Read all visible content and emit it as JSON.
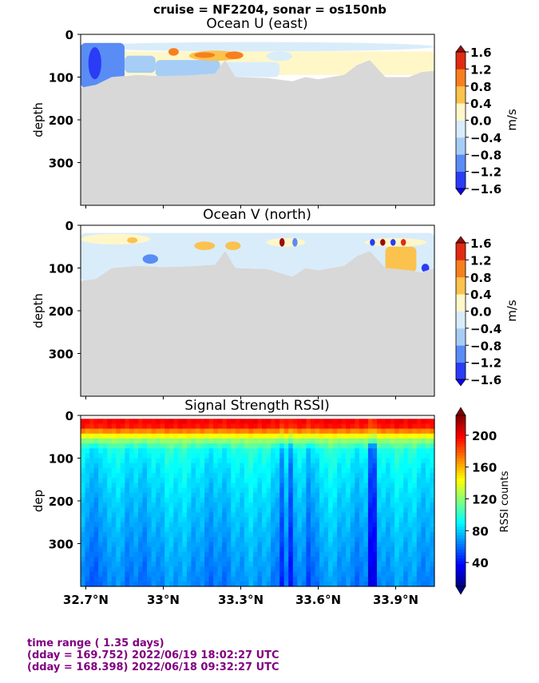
{
  "suptitle": "cruise = NF2204,  sonar = os150nb",
  "colors": {
    "land": "#d8d8d8",
    "footer": "#800080"
  },
  "footer": {
    "line1": "time range ( 1.35 days)",
    "line2": "(dday = 169.752) 2022/06/19 18:02:27 UTC",
    "line3": "(dday = 168.398) 2022/06/18 09:32:27 UTC"
  },
  "chart_data": [
    {
      "type": "heatmap",
      "title": "Ocean U (east)",
      "ylabel": "depth",
      "yticks": [
        "0",
        "100",
        "200",
        "300"
      ],
      "ylim": [
        400,
        0
      ],
      "xlim": [
        32.68,
        34.05
      ],
      "xticks": [
        32.7,
        33.0,
        33.3,
        33.6,
        33.9
      ],
      "colorbar": {
        "label": "m/s",
        "ticks": [
          "1.6",
          "1.2",
          "0.8",
          "0.4",
          "0.0",
          "−0.4",
          "−0.8",
          "−1.2",
          "−1.6"
        ]
      },
      "bottom_depth": [
        [
          32.68,
          125
        ],
        [
          32.74,
          118
        ],
        [
          32.8,
          100
        ],
        [
          32.9,
          95
        ],
        [
          33.0,
          98
        ],
        [
          33.1,
          96
        ],
        [
          33.2,
          92
        ],
        [
          33.24,
          60
        ],
        [
          33.28,
          100
        ],
        [
          33.4,
          102
        ],
        [
          33.5,
          110
        ],
        [
          33.55,
          100
        ],
        [
          33.6,
          105
        ],
        [
          33.7,
          95
        ],
        [
          33.75,
          72
        ],
        [
          33.8,
          60
        ],
        [
          33.86,
          100
        ],
        [
          33.95,
          100
        ],
        [
          34.0,
          88
        ],
        [
          34.05,
          85
        ]
      ],
      "features": [
        {
          "lat0": 32.68,
          "lat1": 34.05,
          "d0": 18,
          "d1": 40,
          "value": -0.4
        },
        {
          "lat0": 32.68,
          "lat1": 34.05,
          "d0": 40,
          "d1": 95,
          "value": 0.2
        },
        {
          "lat0": 32.68,
          "lat1": 32.85,
          "d0": 20,
          "d1": 125,
          "value": -1.0
        },
        {
          "lat0": 32.71,
          "lat1": 32.76,
          "d0": 30,
          "d1": 105,
          "value": -1.5
        },
        {
          "lat0": 32.85,
          "lat1": 32.97,
          "d0": 50,
          "d1": 90,
          "value": -0.8
        },
        {
          "lat0": 32.97,
          "lat1": 33.22,
          "d0": 60,
          "d1": 100,
          "value": -0.6
        },
        {
          "lat0": 33.22,
          "lat1": 33.45,
          "d0": 65,
          "d1": 100,
          "value": -0.4
        },
        {
          "lat0": 33.1,
          "lat1": 33.3,
          "d0": 38,
          "d1": 62,
          "value": 0.6
        },
        {
          "lat0": 33.12,
          "lat1": 33.2,
          "d0": 42,
          "d1": 55,
          "value": 1.0
        },
        {
          "lat0": 33.24,
          "lat1": 33.31,
          "d0": 40,
          "d1": 58,
          "value": 1.1
        },
        {
          "lat0": 33.02,
          "lat1": 33.06,
          "d0": 32,
          "d1": 50,
          "value": 0.9
        },
        {
          "lat0": 33.4,
          "lat1": 33.5,
          "d0": 40,
          "d1": 62,
          "value": -0.4
        },
        {
          "lat0": 33.8,
          "lat1": 34.0,
          "d0": 50,
          "d1": 95,
          "value": 0.3
        }
      ]
    },
    {
      "type": "heatmap",
      "title": "Ocean V (north)",
      "ylabel": "depth",
      "yticks": [
        "0",
        "100",
        "200",
        "300"
      ],
      "ylim": [
        400,
        0
      ],
      "xlim": [
        32.68,
        34.05
      ],
      "xticks": [
        32.7,
        33.0,
        33.3,
        33.6,
        33.9
      ],
      "colorbar": {
        "label": "m/s",
        "ticks": [
          "1.6",
          "1.2",
          "0.8",
          "0.4",
          "0.0",
          "−0.4",
          "−0.8",
          "−1.2",
          "−1.6"
        ]
      },
      "bottom_depth": [
        [
          32.68,
          130
        ],
        [
          32.74,
          125
        ],
        [
          32.8,
          100
        ],
        [
          32.9,
          95
        ],
        [
          33.0,
          98
        ],
        [
          33.1,
          96
        ],
        [
          33.2,
          92
        ],
        [
          33.24,
          60
        ],
        [
          33.28,
          100
        ],
        [
          33.4,
          102
        ],
        [
          33.5,
          120
        ],
        [
          33.55,
          100
        ],
        [
          33.6,
          105
        ],
        [
          33.7,
          95
        ],
        [
          33.75,
          72
        ],
        [
          33.8,
          60
        ],
        [
          33.86,
          100
        ],
        [
          33.95,
          105
        ],
        [
          34.0,
          110
        ],
        [
          34.05,
          100
        ]
      ],
      "features": [
        {
          "lat0": 32.68,
          "lat1": 34.05,
          "d0": 18,
          "d1": 130,
          "value": -0.3
        },
        {
          "lat0": 32.68,
          "lat1": 32.95,
          "d0": 20,
          "d1": 45,
          "value": 0.1
        },
        {
          "lat0": 32.86,
          "lat1": 32.9,
          "d0": 28,
          "d1": 42,
          "value": 0.7
        },
        {
          "lat0": 32.92,
          "lat1": 32.98,
          "d0": 68,
          "d1": 90,
          "value": -1.2
        },
        {
          "lat0": 33.12,
          "lat1": 33.2,
          "d0": 38,
          "d1": 58,
          "value": 0.7
        },
        {
          "lat0": 33.24,
          "lat1": 33.3,
          "d0": 38,
          "d1": 58,
          "value": 0.6
        },
        {
          "lat0": 33.4,
          "lat1": 33.55,
          "d0": 30,
          "d1": 50,
          "value": 0.2
        },
        {
          "lat0": 33.45,
          "lat1": 33.47,
          "d0": 30,
          "d1": 50,
          "value": 1.6
        },
        {
          "lat0": 33.5,
          "lat1": 33.52,
          "d0": 30,
          "d1": 50,
          "value": -1.2
        },
        {
          "lat0": 33.78,
          "lat1": 34.02,
          "d0": 30,
          "d1": 50,
          "value": 0.3
        },
        {
          "lat0": 33.8,
          "lat1": 33.82,
          "d0": 32,
          "d1": 48,
          "value": -1.6
        },
        {
          "lat0": 33.84,
          "lat1": 33.86,
          "d0": 32,
          "d1": 48,
          "value": 1.6
        },
        {
          "lat0": 33.88,
          "lat1": 33.9,
          "d0": 32,
          "d1": 48,
          "value": -1.4
        },
        {
          "lat0": 33.92,
          "lat1": 33.94,
          "d0": 32,
          "d1": 48,
          "value": 1.5
        },
        {
          "lat0": 33.86,
          "lat1": 33.98,
          "d0": 50,
          "d1": 110,
          "value": 0.5
        },
        {
          "lat0": 34.0,
          "lat1": 34.03,
          "d0": 90,
          "d1": 110,
          "value": -1.3
        }
      ]
    },
    {
      "type": "heatmap",
      "title": "Signal Strength RSSI)",
      "ylabel": "dep",
      "yticks": [
        "0",
        "100",
        "200",
        "300"
      ],
      "ylim": [
        400,
        0
      ],
      "xlim": [
        32.68,
        34.05
      ],
      "xticks": [
        32.7,
        33.0,
        33.3,
        33.6,
        33.9
      ],
      "xticklabels": [
        "32.7°N",
        "33°N",
        "33.3°N",
        "33.6°N",
        "33.9°N"
      ],
      "colorbar": {
        "label": "RSSI counts",
        "vmin": 10,
        "vmax": 225,
        "ticks": [
          "200",
          "160",
          "120",
          "80",
          "40"
        ]
      },
      "profile": [
        [
          10,
          200
        ],
        [
          25,
          195
        ],
        [
          35,
          175
        ],
        [
          45,
          150
        ],
        [
          60,
          120
        ],
        [
          80,
          95
        ],
        [
          120,
          88
        ],
        [
          200,
          80
        ],
        [
          300,
          72
        ],
        [
          400,
          65
        ]
      ],
      "low_columns": [
        [
          32.7,
          32.78,
          -12
        ],
        [
          32.86,
          32.87,
          -25
        ],
        [
          33.45,
          33.46,
          -22
        ],
        [
          33.49,
          33.5,
          -18
        ],
        [
          33.55,
          33.6,
          -12
        ],
        [
          33.8,
          33.82,
          -28
        ]
      ]
    }
  ]
}
